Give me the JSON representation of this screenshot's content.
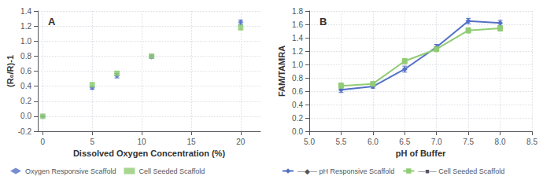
{
  "chart_data": [
    {
      "type": "scatter",
      "title": "A",
      "xlabel": "Dissolved Oxygen Concentration (%)",
      "ylabel": "(R₀/R)-1",
      "x": [
        0,
        5,
        7.5,
        11,
        20
      ],
      "series": [
        {
          "name": "Oxygen Responsive Scaffold",
          "values": [
            0.0,
            0.38,
            0.54,
            0.79,
            1.25
          ],
          "errors": [
            0.005,
            0.02,
            0.03,
            0.02,
            0.03
          ],
          "marker": "diamond"
        },
        {
          "name": "Cell Seeded Scaffold",
          "values": [
            0.0,
            0.42,
            0.57,
            0.8,
            1.18
          ],
          "errors": [
            0.005,
            0.02,
            0.03,
            0.02,
            0.03
          ],
          "marker": "square"
        }
      ],
      "xlim": [
        -0.5,
        22
      ],
      "xticks": [
        0,
        5,
        10,
        15,
        20
      ],
      "ylim": [
        -0.2,
        1.4
      ],
      "yticks": [
        -0.2,
        {
          "value": 0,
          "label": "0.0"
        },
        0.2,
        0.4,
        0.6,
        0.8,
        {
          "value": 1.0,
          "label": "1.0"
        },
        1.2,
        1.4
      ],
      "grid": true,
      "legend": "bottom"
    },
    {
      "type": "line",
      "title": "B",
      "xlabel": "pH of Buffer",
      "ylabel": "FAM/TAMRA",
      "x": [
        5.5,
        6.0,
        6.5,
        7.0,
        7.5,
        8.0
      ],
      "series": [
        {
          "name": "—◆— pH Responsive Scaffold",
          "values": [
            0.62,
            0.67,
            0.93,
            1.26,
            1.65,
            1.62
          ],
          "errors": [
            0.04,
            0.025,
            0.045,
            0.04,
            0.04,
            0.04
          ],
          "marker": "diamond"
        },
        {
          "name": "—■— Cell Seeded Scaffold",
          "values": [
            0.68,
            0.71,
            1.05,
            1.23,
            1.51,
            1.54
          ],
          "errors": [
            0.045,
            0.025,
            0.04,
            0.04,
            0.04,
            0.04
          ],
          "marker": "square"
        }
      ],
      "xlim": [
        5.0,
        8.5
      ],
      "xticks": [
        {
          "value": 5.0,
          "label": "5.0"
        },
        5.5,
        {
          "value": 6.0,
          "label": "6.0"
        },
        6.5,
        {
          "value": 7.0,
          "label": "7.0"
        },
        7.5,
        {
          "value": 8.0,
          "label": "8.0"
        },
        8.5
      ],
      "ylim": [
        0,
        1.8
      ],
      "yticks": [
        {
          "value": 0,
          "label": "0.0"
        },
        0.2,
        0.4,
        0.6,
        0.8,
        {
          "value": 1.0,
          "label": "1.0"
        },
        1.2,
        1.4,
        1.6,
        1.8
      ],
      "grid": true,
      "legend": "bottom"
    }
  ]
}
